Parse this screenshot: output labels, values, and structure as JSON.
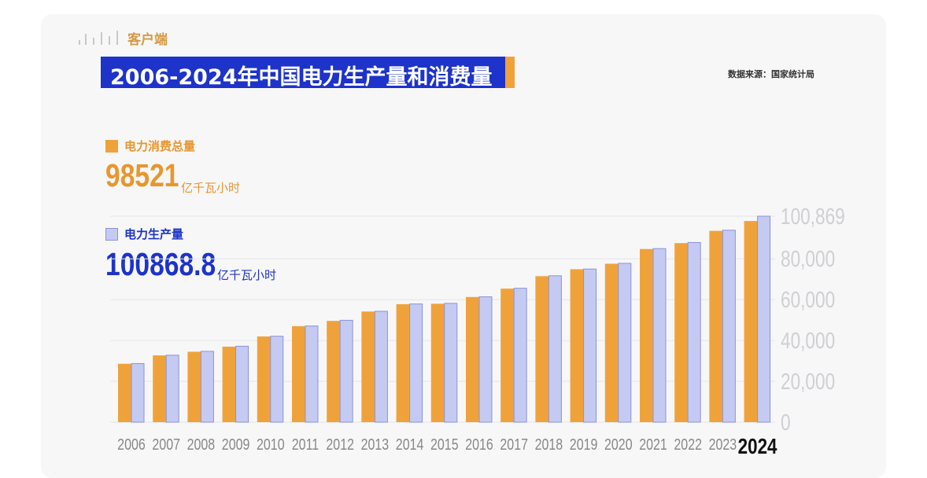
{
  "watermark": {
    "text": "客户端"
  },
  "title": "2006-2024年中国电力生产量和消费量",
  "source": "数据来源：国家统计局",
  "consumption": {
    "label": "电力消费总量",
    "value": "98521",
    "unit": "亿千瓦小时"
  },
  "production": {
    "label": "电力生产量",
    "value": "100868.8",
    "unit": "亿千瓦小时"
  },
  "colors": {
    "consumption": "#f0a23a",
    "production": "#c5caf2",
    "title_bg": "#1d33c9",
    "production_text": "#1d33c9",
    "consumption_text": "#e8962f"
  },
  "chart_data": {
    "type": "bar",
    "title": "2006-2024年中国电力生产量和消费量",
    "xlabel": "",
    "ylabel": "亿千瓦小时",
    "categories": [
      "2006",
      "2007",
      "2008",
      "2009",
      "2010",
      "2011",
      "2012",
      "2013",
      "2014",
      "2015",
      "2016",
      "2017",
      "2018",
      "2019",
      "2020",
      "2021",
      "2022",
      "2023",
      "2024"
    ],
    "series": [
      {
        "name": "电力消费总量",
        "values": [
          28600,
          32700,
          34500,
          37000,
          42000,
          47000,
          49600,
          54200,
          57800,
          58000,
          61300,
          65400,
          71500,
          74900,
          77600,
          84800,
          87700,
          93700,
          98521
        ]
      },
      {
        "name": "电力生产量",
        "values": [
          28700,
          32800,
          34700,
          37200,
          42100,
          47100,
          49900,
          54300,
          57900,
          58200,
          61400,
          65600,
          71700,
          75000,
          77800,
          85000,
          88000,
          94000,
          100868.8
        ]
      }
    ],
    "yticks": [
      "0",
      "20,000",
      "40,000",
      "60,000",
      "80,000",
      "100,869"
    ],
    "ytick_values": [
      0,
      20000,
      40000,
      60000,
      80000,
      100869
    ],
    "ylim": [
      0,
      100869
    ],
    "grid": true,
    "highlight_category": "2024",
    "legend": "top-left"
  }
}
